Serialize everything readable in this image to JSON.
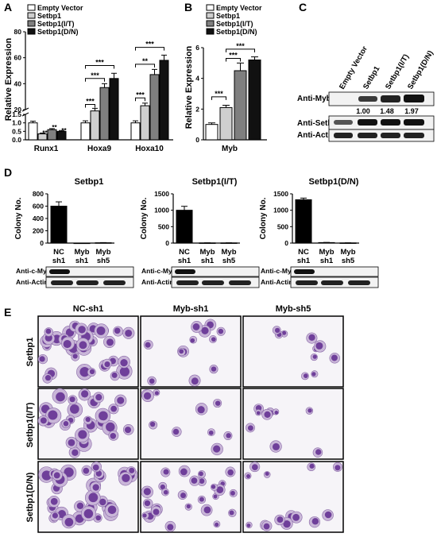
{
  "panels": {
    "A": "A",
    "B": "B",
    "C": "C",
    "D": "D",
    "E": "E"
  },
  "legend": [
    "Empty Vector",
    "Setbp1",
    "Setbp1(I/T)",
    "Setbp1(D/N)"
  ],
  "colors": {
    "empty": "#ffffff",
    "setbp1": "#cfcfcf",
    "it": "#7f7f7f",
    "dn": "#111111"
  },
  "panelA": {
    "ylabel": "Relative Expression",
    "groups": [
      "Runx1",
      "Hoxa9",
      "Hoxa10"
    ],
    "sig": [
      "**",
      "***",
      "***",
      "***",
      "***",
      "**",
      "***",
      "***"
    ]
  },
  "panelB": {
    "ylabel": "Relative Expression",
    "group": "Myb",
    "sig": [
      "***",
      "***",
      "***"
    ]
  },
  "panelC": {
    "columns": [
      "Empty Vector",
      "Setbp1",
      "Setbp1(I/T)",
      "Setbp1(D/N)"
    ],
    "rows": [
      "Anti-Myb",
      "Anti-Setbp1",
      "Anti-Actin"
    ],
    "quant": [
      "1.00",
      "1.48",
      "1.97"
    ]
  },
  "panelD": {
    "ylabel": "Colony No.",
    "cats": [
      [
        "NC",
        "sh1"
      ],
      [
        "Myb",
        "sh1"
      ],
      [
        "Myb",
        "sh5"
      ]
    ],
    "blot_rows": [
      "Anti-c-Myb",
      "Anti-Actin"
    ]
  },
  "panelE": {
    "columns": [
      "NC-sh1",
      "Myb-sh1",
      "Myb-sh5"
    ],
    "rows": [
      "Setbp1",
      "Setbp1(I/T)",
      "Setbp1(D/N)"
    ]
  },
  "chart_data": [
    {
      "type": "bar",
      "panel": "A",
      "categories": [
        "Runx1",
        "Hoxa9",
        "Hoxa10"
      ],
      "ylabel": "Relative Expression",
      "ylim": [
        0,
        80
      ],
      "axis_break": [
        1.5,
        20
      ],
      "lower_ticks": [
        "0.0",
        "0.5",
        "1.0",
        "1.5"
      ],
      "upper_ticks": [
        "20",
        "40",
        "60",
        "80"
      ],
      "series": [
        {
          "name": "Empty Vector",
          "values": [
            1.0,
            1.0,
            1.0
          ],
          "errors": [
            0.1,
            0.12,
            0.12
          ]
        },
        {
          "name": "Setbp1",
          "values": [
            0.35,
            19,
            23
          ],
          "errors": [
            0.05,
            2,
            2
          ]
        },
        {
          "name": "Setbp1(I/T)",
          "values": [
            0.6,
            37,
            47
          ],
          "errors": [
            0.06,
            3,
            4
          ]
        },
        {
          "name": "Setbp1(D/N)",
          "values": [
            0.5,
            44,
            58
          ],
          "errors": [
            0.05,
            4,
            4
          ]
        }
      ]
    },
    {
      "type": "bar",
      "panel": "B",
      "categories": [
        "Myb"
      ],
      "ylabel": "Relative Expression",
      "ylim": [
        0,
        6
      ],
      "ticks": [
        "0",
        "2",
        "4",
        "6"
      ],
      "series": [
        {
          "name": "Empty Vector",
          "values": [
            1.0
          ],
          "errors": [
            0.1
          ]
        },
        {
          "name": "Setbp1",
          "values": [
            2.1
          ],
          "errors": [
            0.15
          ]
        },
        {
          "name": "Setbp1(I/T)",
          "values": [
            4.5
          ],
          "errors": [
            0.5
          ]
        },
        {
          "name": "Setbp1(D/N)",
          "values": [
            5.2
          ],
          "errors": [
            0.2
          ]
        }
      ]
    },
    {
      "type": "bar",
      "panel": "D1",
      "title": "Setbp1",
      "ylabel": "Colony No.",
      "categories": [
        "NC sh1",
        "Myb sh1",
        "Myb sh5"
      ],
      "ylim": [
        0,
        800
      ],
      "ticks": [
        "0",
        "200",
        "400",
        "600",
        "800"
      ],
      "values": [
        600,
        0,
        5
      ],
      "errors": [
        70,
        0,
        3
      ]
    },
    {
      "type": "bar",
      "panel": "D2",
      "title": "Setbp1(I/T)",
      "ylabel": "Colony No.",
      "categories": [
        "NC sh1",
        "Myb sh1",
        "Myb sh5"
      ],
      "ylim": [
        0,
        1500
      ],
      "ticks": [
        "0",
        "500",
        "1000",
        "1500"
      ],
      "values": [
        1000,
        5,
        5
      ],
      "errors": [
        120,
        3,
        3
      ]
    },
    {
      "type": "bar",
      "panel": "D3",
      "title": "Setbp1(D/N)",
      "ylabel": "Colony No.",
      "categories": [
        "NC sh1",
        "Myb sh1",
        "Myb sh5"
      ],
      "ylim": [
        0,
        1500
      ],
      "ticks": [
        "0",
        "500",
        "1000",
        "1500"
      ],
      "values": [
        1320,
        15,
        5
      ],
      "errors": [
        50,
        5,
        3
      ]
    }
  ]
}
